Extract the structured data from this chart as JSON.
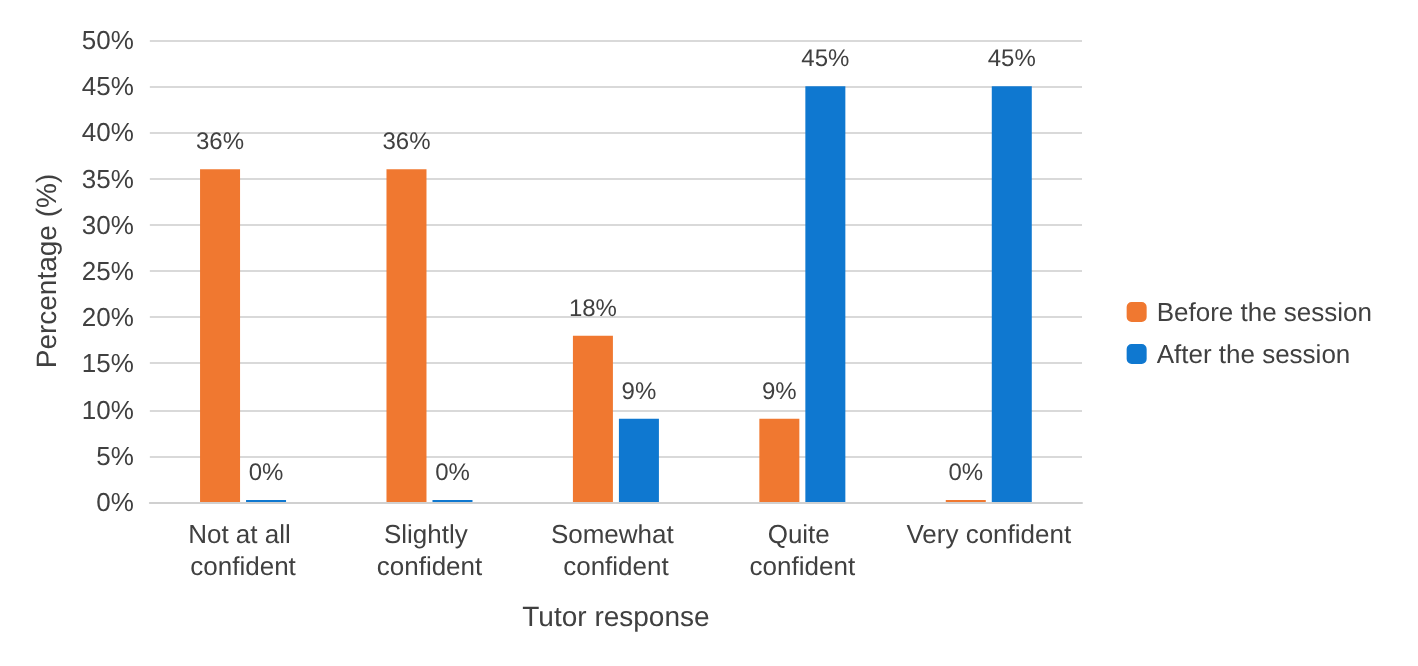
{
  "chart_data": {
    "type": "bar",
    "xlabel": "Tutor response",
    "ylabel": "Percentage (%)",
    "categories": [
      "Not at all confident",
      "Slightly confident",
      "Somewhat confident",
      "Quite confident",
      "Very confident"
    ],
    "series": [
      {
        "name": "Before the session",
        "color": "#f07830",
        "values": [
          36,
          36,
          18,
          9,
          0
        ],
        "value_labels": [
          "36%",
          "36%",
          "18%",
          "9%",
          "0%"
        ]
      },
      {
        "name": "After the session",
        "color": "#0f78d0",
        "values": [
          0,
          0,
          9,
          45,
          45
        ],
        "value_labels": [
          "0%",
          "0%",
          "9%",
          "45%",
          "45%"
        ]
      }
    ],
    "ylim": [
      0,
      50
    ],
    "yticks": [
      {
        "value": 0,
        "label": "0%"
      },
      {
        "value": 5,
        "label": "5%"
      },
      {
        "value": 10,
        "label": "10%"
      },
      {
        "value": 15,
        "label": "15%"
      },
      {
        "value": 20,
        "label": "20%"
      },
      {
        "value": 25,
        "label": "25%"
      },
      {
        "value": 30,
        "label": "30%"
      },
      {
        "value": 35,
        "label": "35%"
      },
      {
        "value": 40,
        "label": "40%"
      },
      {
        "value": 45,
        "label": "45%"
      },
      {
        "value": 50,
        "label": "50%"
      }
    ],
    "grid": "y",
    "legend": "right"
  }
}
